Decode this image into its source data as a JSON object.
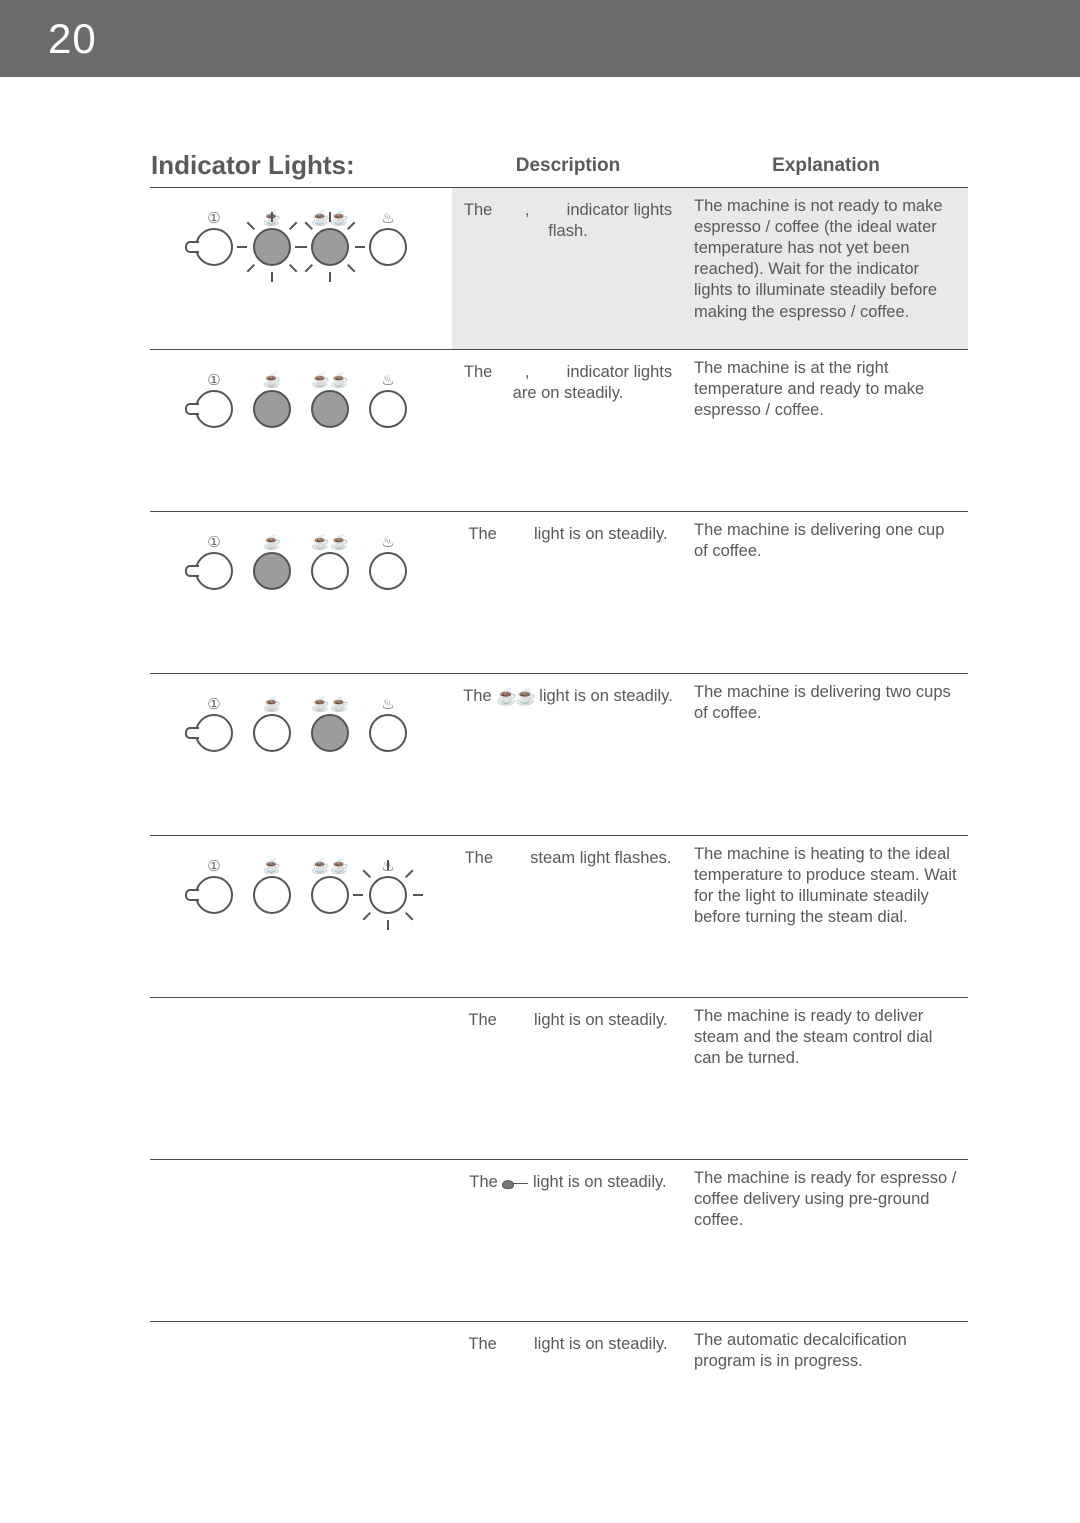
{
  "page_number": "20",
  "headers": {
    "indicator": "Indicator Lights:",
    "description": "Description",
    "explanation": "Explanation"
  },
  "rows": [
    {
      "panel": {
        "one_on": true,
        "two_on": true,
        "one_flash": true,
        "two_flash": true,
        "steam_flash": false,
        "steam_on": false
      },
      "desc_pre": "The ",
      "desc_mid": ", ",
      "desc_post": " indicator lights flash.",
      "exp": "The machine is not ready to make espresso / coffee (the ideal water temperature has not yet been reached).  Wait for the indicator lights to illuminate steadily before making the espresso / coffee."
    },
    {
      "panel": {
        "one_on": true,
        "two_on": true,
        "one_flash": false,
        "two_flash": false,
        "steam_flash": false,
        "steam_on": false
      },
      "desc_pre": "The ",
      "desc_mid": ", ",
      "desc_post": " indicator lights are on steadily.",
      "exp": "The machine is at the right temperature and ready to make espresso / coffee."
    },
    {
      "panel": {
        "one_on": true,
        "two_on": false,
        "one_flash": false,
        "two_flash": false,
        "steam_flash": false,
        "steam_on": false
      },
      "desc_pre": "The ",
      "desc_mid": "",
      "desc_post": " light is on steadily.",
      "exp": "The machine is delivering one cup of coffee."
    },
    {
      "panel": {
        "one_on": false,
        "two_on": true,
        "one_flash": false,
        "two_flash": false,
        "steam_flash": false,
        "steam_on": false
      },
      "desc_pre": "The ",
      "desc_mid": "",
      "desc_post": " light is on steadily.",
      "desc_icon": "two_cups",
      "exp": "The machine is delivering two cups of coffee."
    },
    {
      "panel": {
        "one_on": false,
        "two_on": false,
        "one_flash": false,
        "two_flash": false,
        "steam_flash": true,
        "steam_on": false
      },
      "desc_pre": "The ",
      "desc_mid": "",
      "desc_post": " steam light flashes.",
      "exp": "The machine is heating to the ideal temperature to produce steam.  Wait for the light to illuminate steadily before turning the steam dial."
    },
    {
      "panel": null,
      "desc_pre": "The ",
      "desc_mid": "",
      "desc_post": " light is on steadily.",
      "exp": "The machine is ready to deliver steam and the steam control dial can be turned."
    },
    {
      "panel": null,
      "desc_pre": "The ",
      "desc_mid": "",
      "desc_post": " light is on steadily.",
      "desc_icon": "scoop",
      "exp": "The machine is ready for espresso / coffee delivery using pre-ground coffee."
    },
    {
      "panel": null,
      "desc_pre": "The ",
      "desc_mid": "",
      "desc_post": " light is on steadily.",
      "exp": "The automatic decalcification program is in progress."
    }
  ],
  "icons": {
    "power": "①",
    "one_cup": "☕",
    "two_cups": "☕☕",
    "steam": "♨",
    "one_cup_small": "⎐",
    "two_cups_small": "⎐⎐"
  },
  "colors": {
    "topbar_bg": "#6b6b6b",
    "text": "#595959",
    "circle_on": "#9c9c9c",
    "rule": "#4a4a4a",
    "shade": "#e9e9e9"
  }
}
